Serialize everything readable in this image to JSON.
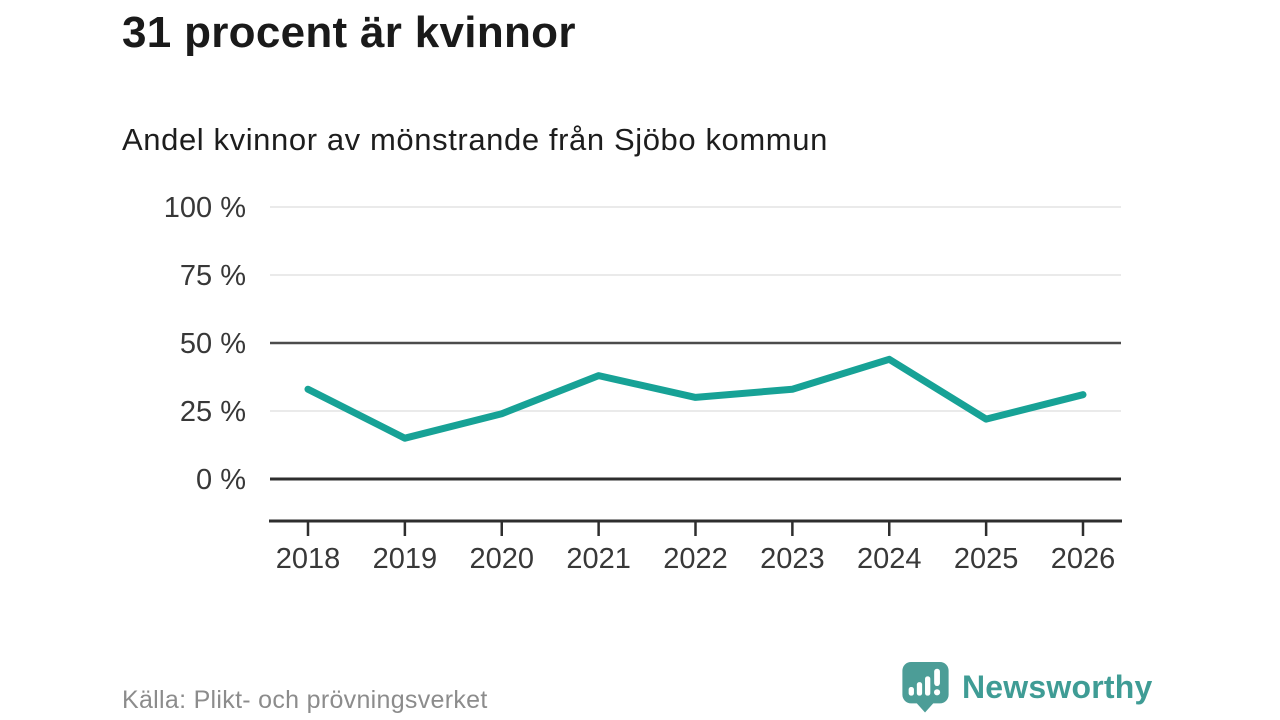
{
  "header": {
    "title": "31 procent är kvinnor",
    "subtitle": "Andel kvinnor av mönstrande från Sjöbo kommun"
  },
  "chart_data": {
    "type": "line",
    "title": "31 procent är kvinnor",
    "subtitle": "Andel kvinnor av mönstrande från Sjöbo kommun",
    "x": [
      2018,
      2019,
      2020,
      2021,
      2022,
      2023,
      2024,
      2025,
      2026
    ],
    "series": [
      {
        "name": "Andel kvinnor av mönstrande",
        "values": [
          33,
          15,
          24,
          38,
          30,
          33,
          44,
          22,
          31
        ]
      }
    ],
    "unit": "%",
    "xlabel": "",
    "ylabel": "",
    "ylim": [
      0,
      100
    ],
    "yticks": [
      0,
      25,
      50,
      75,
      100
    ],
    "ytick_suffix": " %",
    "grid": "on",
    "legend": "none",
    "emphasized_gridlines": [
      0,
      50
    ],
    "colors": {
      "line": "#17a296",
      "grid_light": "#e3e3e3",
      "grid_dark": "#4c4c4c",
      "axis": "#2e2e2e",
      "tick_label": "#383838"
    }
  },
  "footer": {
    "source": "Källa: Plikt- och prövningsverket",
    "brand": "Newsworthy",
    "brand_color": "#3f9c95",
    "logo_bubble_color": "#4c9d97",
    "logo_glyph_color": "#ffffff"
  }
}
